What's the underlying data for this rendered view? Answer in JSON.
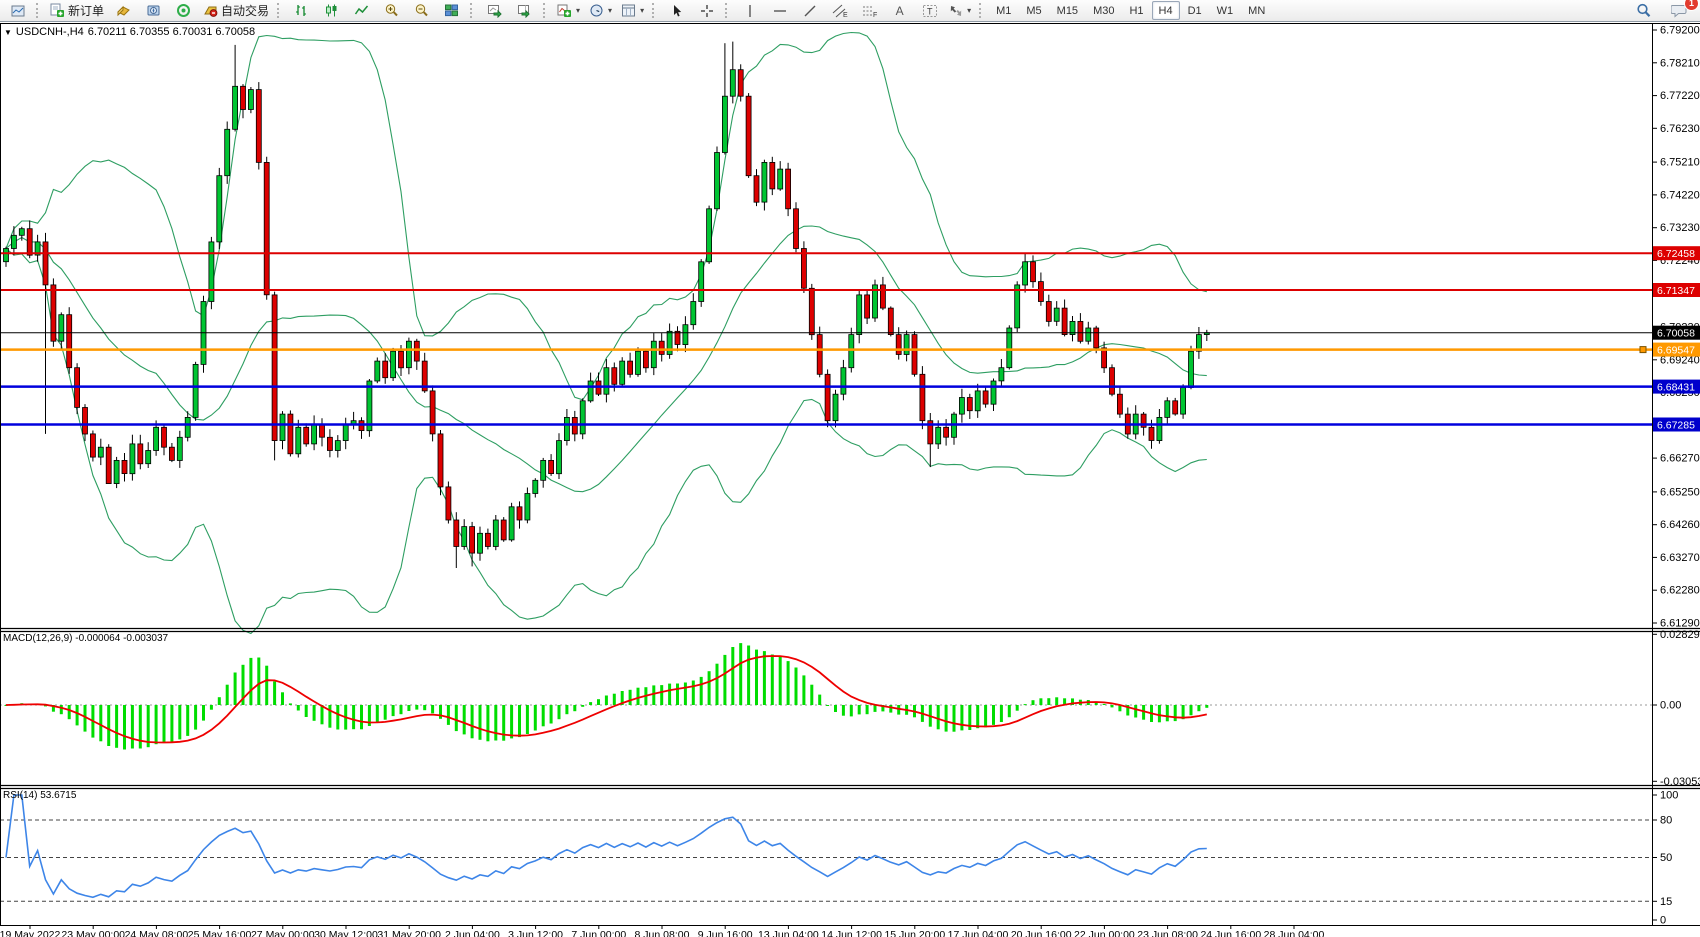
{
  "window": {
    "title_symbol": "USDCNH-,H4",
    "title_ohlc": "6.70211 6.70355 6.70031 6.70058"
  },
  "toolbar": {
    "new_order_label": "新订单",
    "autotrading_label": "自动交易",
    "timeframes": [
      "M1",
      "M5",
      "M15",
      "M30",
      "H1",
      "H4",
      "D1",
      "W1",
      "MN"
    ],
    "active_timeframe": "H4",
    "notification_count": "1"
  },
  "indicators": {
    "macd_label": "MACD(12,26,9) -0.000064 -0.003037",
    "rsi_label": "RSI(14) 53.6715"
  },
  "price_axis": {
    "ticks": [
      "6.79200",
      "6.78210",
      "6.77220",
      "6.76230",
      "6.75210",
      "6.74220",
      "6.73230",
      "6.72240",
      "6.71250",
      "6.70230",
      "6.69240",
      "6.68250",
      "6.67260",
      "6.66270",
      "6.65250",
      "6.64260",
      "6.63270",
      "6.62280",
      "6.61290"
    ]
  },
  "hlines": [
    {
      "price": 6.72458,
      "label": "6.72458",
      "color": "#dd0000",
      "width": 2,
      "badge_bg": "#dd0000"
    },
    {
      "price": 6.71347,
      "label": "6.71347",
      "color": "#dd0000",
      "width": 2,
      "badge_bg": "#dd0000"
    },
    {
      "price": 6.70058,
      "label": "6.70058",
      "color": "#000000",
      "width": 1,
      "badge_bg": "#000000"
    },
    {
      "price": 6.69547,
      "label": "6.69547",
      "color": "#ff9900",
      "width": 2.5,
      "badge_bg": "#ff9900",
      "handle": true
    },
    {
      "price": 6.68431,
      "label": "6.68431",
      "color": "#0000dd",
      "width": 2.5,
      "badge_bg": "#0000cc"
    },
    {
      "price": 6.67285,
      "label": "6.67285",
      "color": "#0000dd",
      "width": 2.5,
      "badge_bg": "#0000cc"
    }
  ],
  "macd_axis": {
    "top": "0.02829",
    "zero": "0.00",
    "bottom": "-0.030537"
  },
  "rsi_axis": {
    "ticks": [
      100,
      80,
      50,
      15,
      0
    ],
    "dashed_levels": [
      80,
      50,
      15
    ]
  },
  "time_axis": {
    "labels": [
      "19 May 2022",
      "23 May 00:00",
      "24 May 08:00",
      "25 May 16:00",
      "27 May 00:00",
      "30 May 12:00",
      "31 May 20:00",
      "2 Jun 04:00",
      "3 Jun 12:00",
      "7 Jun 00:00",
      "8 Jun 08:00",
      "9 Jun 16:00",
      "13 Jun 04:00",
      "14 Jun 12:00",
      "15 Jun 20:00",
      "17 Jun 04:00",
      "20 Jun 16:00",
      "22 Jun 00:00",
      "23 Jun 08:00",
      "24 Jun 16:00",
      "28 Jun 04:00"
    ]
  },
  "chart_data": {
    "type": "candlestick",
    "symbol": "USDCNH-",
    "timeframe": "H4",
    "current_bar": {
      "open": 6.70211,
      "high": 6.70355,
      "low": 6.70031,
      "close": 6.70058
    },
    "price_axis_range": [
      6.6129,
      6.792
    ],
    "candles": {
      "open0": 6.722,
      "closes": [
        6.726,
        6.73,
        6.732,
        6.724,
        6.728,
        6.715,
        6.698,
        6.706,
        6.69,
        6.678,
        6.67,
        6.663,
        6.666,
        6.655,
        6.662,
        6.658,
        6.667,
        6.661,
        6.665,
        6.672,
        6.666,
        6.662,
        6.669,
        6.675,
        6.691,
        6.71,
        6.728,
        6.748,
        6.762,
        6.775,
        6.768,
        6.774,
        6.752,
        6.712,
        6.668,
        6.676,
        6.664,
        6.672,
        6.667,
        6.673,
        6.669,
        6.665,
        6.668,
        6.673,
        6.674,
        6.671,
        6.686,
        6.692,
        6.687,
        6.695,
        6.69,
        6.698,
        6.692,
        6.683,
        6.67,
        6.654,
        6.644,
        6.636,
        6.642,
        6.634,
        6.64,
        6.636,
        6.644,
        6.638,
        6.648,
        6.644,
        6.652,
        6.656,
        6.662,
        6.658,
        6.668,
        6.675,
        6.67,
        6.68,
        6.686,
        6.682,
        6.69,
        6.685,
        6.692,
        6.688,
        6.695,
        6.69,
        6.698,
        6.694,
        6.701,
        6.697,
        6.703,
        6.71,
        6.722,
        6.738,
        6.755,
        6.772,
        6.78,
        6.772,
        6.748,
        6.74,
        6.752,
        6.744,
        6.75,
        6.738,
        6.726,
        6.714,
        6.7,
        6.688,
        6.674,
        6.682,
        6.69,
        6.7,
        6.712,
        6.705,
        6.715,
        6.708,
        6.7,
        6.694,
        6.7,
        6.688,
        6.674,
        6.667,
        6.672,
        6.669,
        6.676,
        6.681,
        6.677,
        6.683,
        6.679,
        6.686,
        6.69,
        6.702,
        6.715,
        6.722,
        6.716,
        6.71,
        6.704,
        6.708,
        6.7,
        6.704,
        6.698,
        6.702,
        6.696,
        6.69,
        6.682,
        6.676,
        6.67,
        6.676,
        6.672,
        6.668,
        6.675,
        6.68,
        6.676,
        6.684,
        6.695,
        6.7,
        6.70058
      ],
      "wick_overrides": {
        "5": {
          "l": 6.67
        },
        "13": {
          "l": 6.656
        },
        "29": {
          "h": 6.7875
        },
        "34": {
          "l": 6.662
        },
        "57": {
          "l": 6.6295
        },
        "59": {
          "l": 6.63
        },
        "91": {
          "h": 6.788
        },
        "92": {
          "h": 6.7885
        },
        "117": {
          "l": 6.66
        },
        "129": {
          "h": 6.7245
        },
        "145": {
          "l": 6.6655
        }
      }
    },
    "overlays": {
      "bollinger": {
        "period": 20,
        "deviation": 2
      }
    },
    "macd": {
      "fast": 12,
      "slow": 26,
      "signal": 9,
      "current_values": [
        -6.4e-05,
        -0.003037
      ],
      "axis_range": [
        -0.030537,
        0.02829
      ]
    },
    "rsi": {
      "period": 14,
      "current_value": 53.6715,
      "levels": [
        80,
        50,
        15
      ],
      "axis_range": [
        0,
        100
      ]
    }
  },
  "colors": {
    "candle_bull": "#00c432",
    "candle_bear": "#dd0000",
    "candle_outline": "#000000",
    "bollinger": "#2e9e62",
    "macd_histogram": "#00dd00",
    "macd_signal": "#ee0000",
    "rsi_line": "#3d85e8",
    "axis_text": "#000000",
    "dashed_level": "#444444"
  }
}
